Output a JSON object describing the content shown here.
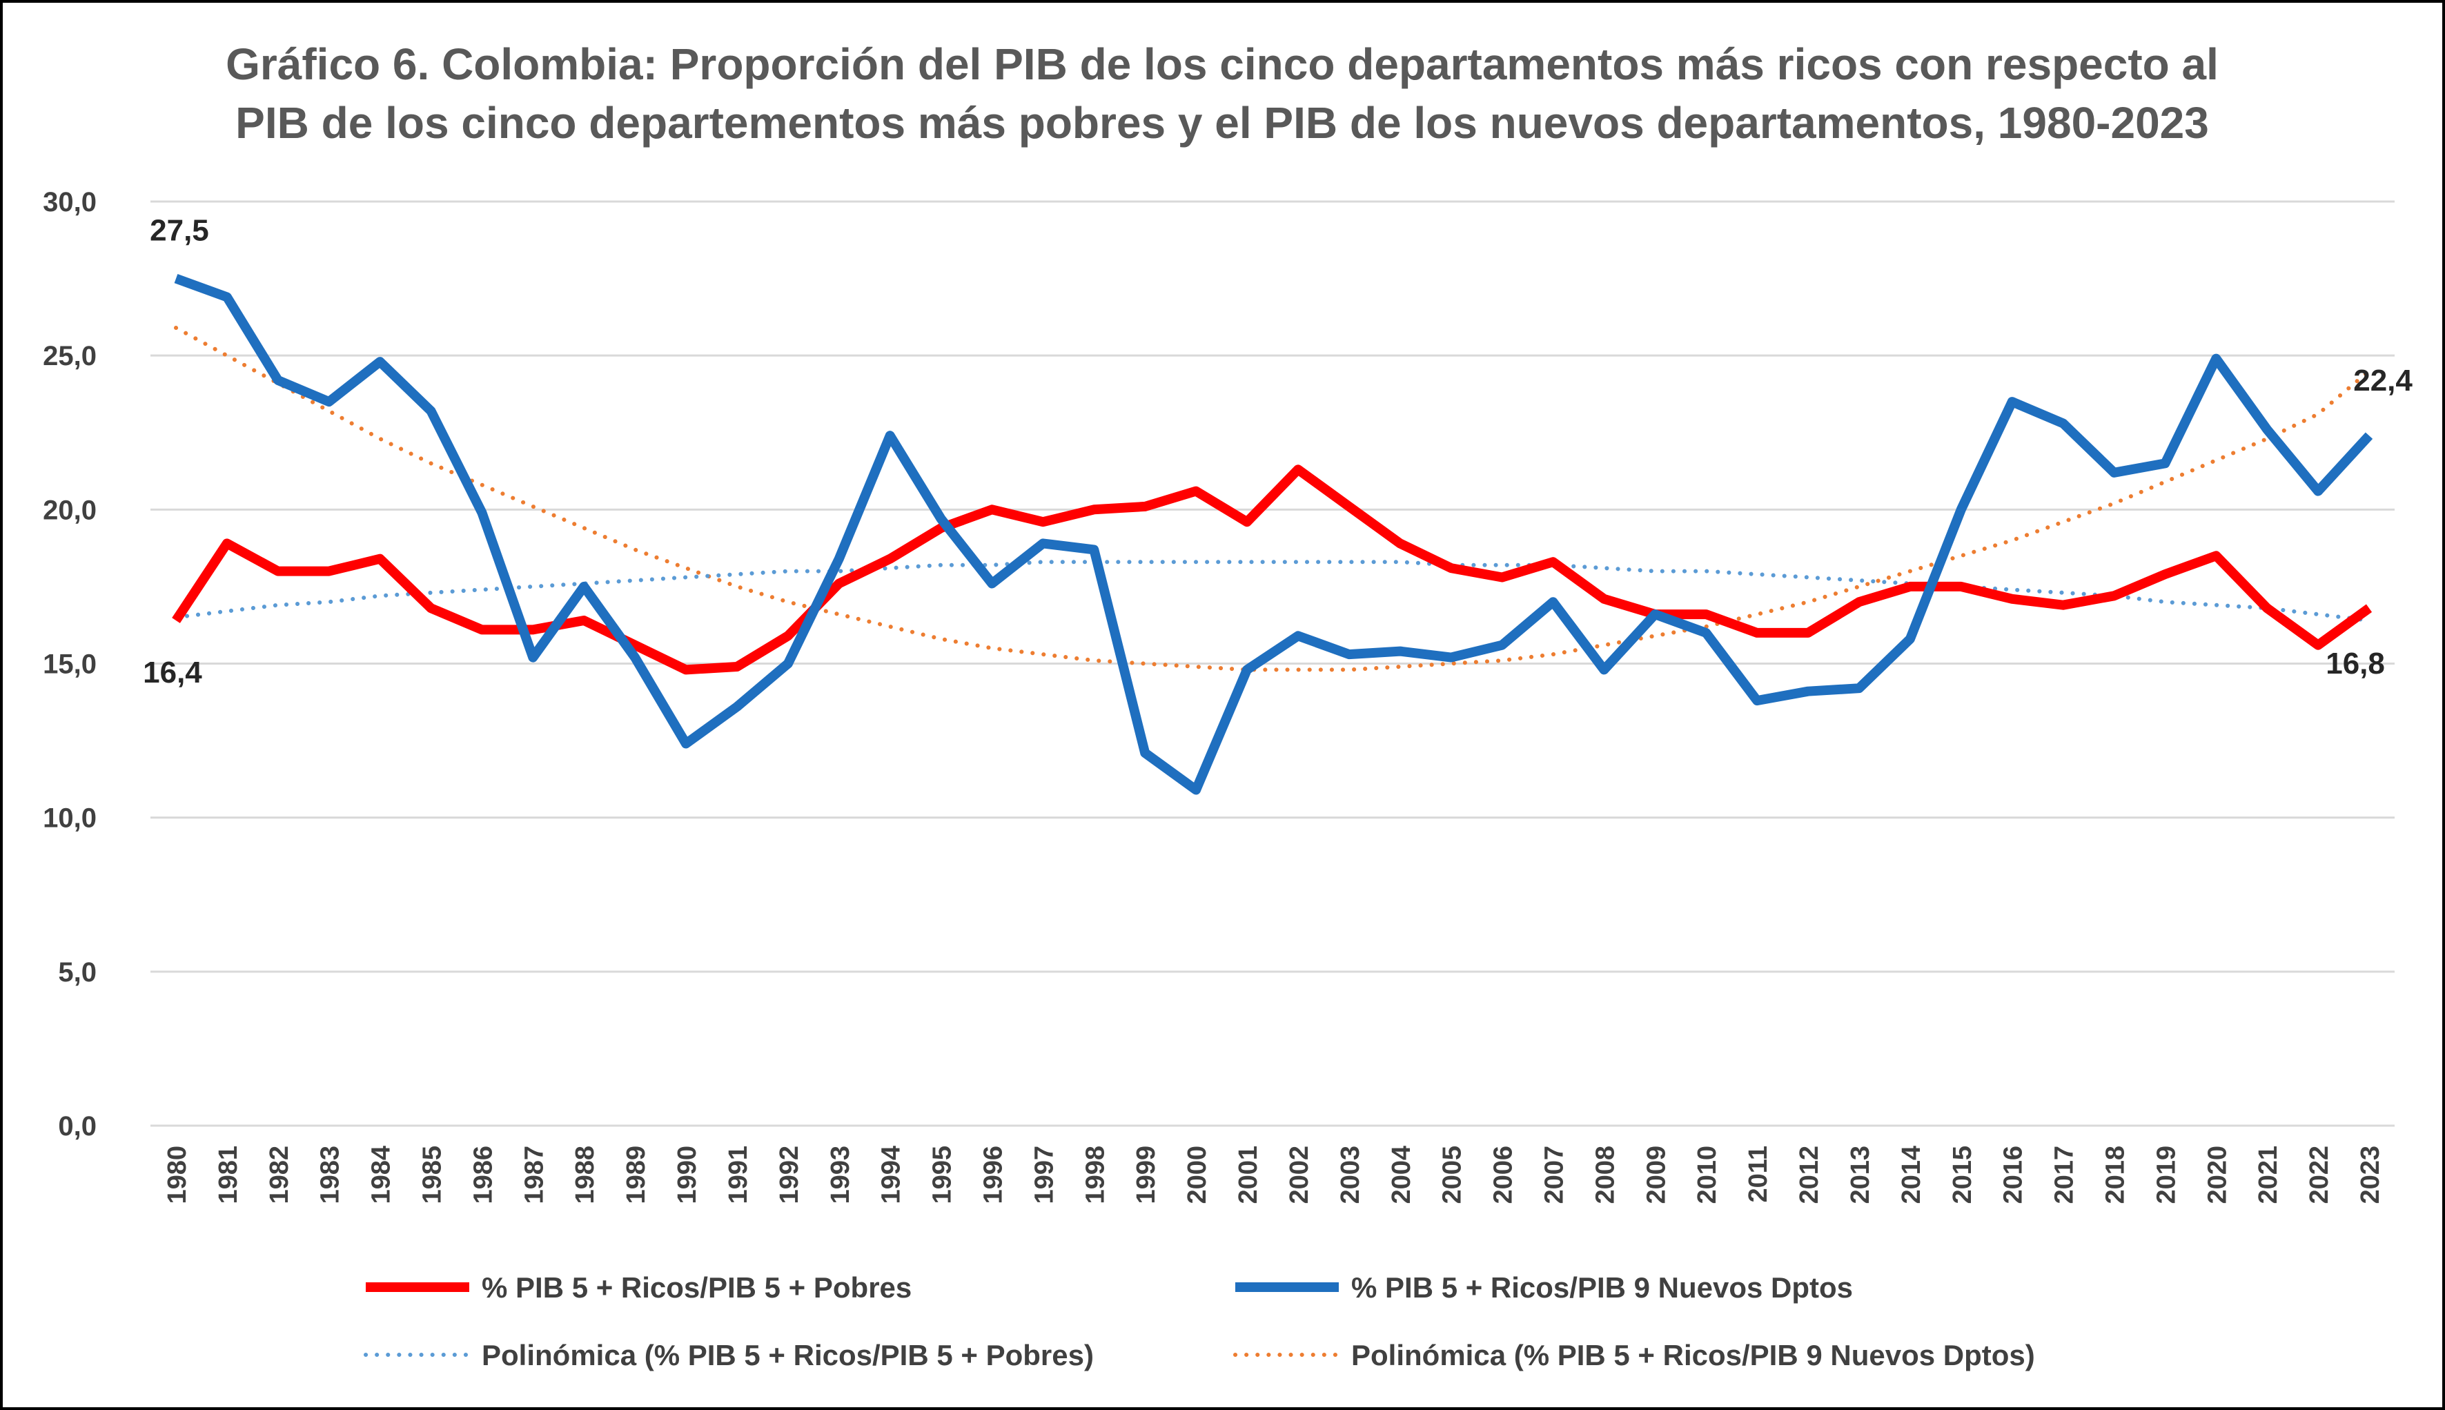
{
  "chart_data": {
    "type": "line",
    "title": "Gráfico 6. Colombia: Proporción del PIB de los cinco departamentos más ricos con respecto al PIB de los cinco departementos más pobres y el PIB de los nuevos departamentos, 1980-2023",
    "title_lines": [
      "Gráfico 6. Colombia: Proporción del PIB de los cinco departamentos más ricos con respecto al",
      "PIB de los cinco departementos más pobres y el PIB de los nuevos departamentos, 1980-2023"
    ],
    "xlabel": "",
    "ylabel": "",
    "ylim": [
      0,
      30
    ],
    "yticks": [
      "0,0",
      "5,0",
      "10,0",
      "15,0",
      "20,0",
      "25,0",
      "30,0"
    ],
    "ytick_values": [
      0,
      5,
      10,
      15,
      20,
      25,
      30
    ],
    "grid": true,
    "legend_position": "bottom",
    "categories": [
      "1980",
      "1981",
      "1982",
      "1983",
      "1984",
      "1985",
      "1986",
      "1987",
      "1988",
      "1989",
      "1990",
      "1991",
      "1992",
      "1993",
      "1994",
      "1995",
      "1996",
      "1997",
      "1998",
      "1999",
      "2000",
      "2001",
      "2002",
      "2003",
      "2004",
      "2005",
      "2006",
      "2007",
      "2008",
      "2009",
      "2010",
      "2011",
      "2012",
      "2013",
      "2014",
      "2015",
      "2016",
      "2017",
      "2018",
      "2019",
      "2020",
      "2021",
      "2022",
      "2023"
    ],
    "series": [
      {
        "name": "% PIB 5 + Ricos/PIB 5 + Pobres",
        "color": "#FF0000",
        "style": "solid",
        "values": [
          16.4,
          18.9,
          18.0,
          18.0,
          18.4,
          16.8,
          16.1,
          16.1,
          16.4,
          15.6,
          14.8,
          14.9,
          15.9,
          17.6,
          18.4,
          19.4,
          20.0,
          19.6,
          20.0,
          20.1,
          20.6,
          19.6,
          21.3,
          20.1,
          18.9,
          18.1,
          17.8,
          18.3,
          17.1,
          16.6,
          16.6,
          16.0,
          16.0,
          17.0,
          17.5,
          17.5,
          17.1,
          16.9,
          17.2,
          17.9,
          18.5,
          16.8,
          15.6,
          16.8
        ]
      },
      {
        "name": "% PIB 5 + Ricos/PIB 9 Nuevos Dptos",
        "color": "#1F6FBF",
        "style": "solid",
        "values": [
          27.5,
          26.9,
          24.2,
          23.5,
          24.8,
          23.2,
          19.9,
          15.2,
          17.5,
          15.2,
          12.4,
          13.6,
          15.0,
          18.4,
          22.4,
          19.7,
          17.6,
          18.9,
          18.7,
          12.1,
          10.9,
          14.8,
          15.9,
          15.3,
          15.4,
          15.2,
          15.6,
          17.0,
          14.8,
          16.6,
          16.0,
          13.8,
          14.1,
          14.2,
          15.8,
          20.0,
          23.5,
          22.8,
          21.2,
          21.5,
          24.9,
          22.6,
          20.6,
          22.4
        ]
      },
      {
        "name": "Polinómica (% PIB 5 + Ricos/PIB 5 + Pobres)",
        "color": "#5B9BD5",
        "style": "dotted",
        "values": [
          16.5,
          16.7,
          16.9,
          17.0,
          17.2,
          17.3,
          17.4,
          17.5,
          17.6,
          17.7,
          17.8,
          17.9,
          18.0,
          18.0,
          18.1,
          18.2,
          18.2,
          18.3,
          18.3,
          18.3,
          18.3,
          18.3,
          18.3,
          18.3,
          18.3,
          18.2,
          18.2,
          18.2,
          18.1,
          18.0,
          18.0,
          17.9,
          17.8,
          17.7,
          17.6,
          17.5,
          17.4,
          17.3,
          17.2,
          17.0,
          16.9,
          16.8,
          16.6,
          16.4
        ]
      },
      {
        "name": "Polinómica (% PIB 5 + Ricos/PIB 9 Nuevos Dptos)",
        "color": "#ED7D31",
        "style": "dotted",
        "values": [
          25.9,
          25.0,
          24.1,
          23.2,
          22.3,
          21.5,
          20.8,
          20.1,
          19.4,
          18.7,
          18.1,
          17.5,
          17.0,
          16.6,
          16.2,
          15.8,
          15.5,
          15.3,
          15.1,
          15.0,
          14.9,
          14.8,
          14.8,
          14.8,
          14.9,
          15.0,
          15.1,
          15.3,
          15.6,
          15.9,
          16.2,
          16.6,
          17.0,
          17.5,
          18.0,
          18.5,
          19.0,
          19.6,
          20.2,
          20.9,
          21.6,
          22.3,
          23.1,
          24.5
        ]
      }
    ],
    "data_labels": [
      {
        "series": 1,
        "index": 0,
        "text": "27,5",
        "anchor": "above"
      },
      {
        "series": 0,
        "index": 0,
        "text": "16,4",
        "anchor": "below"
      },
      {
        "series": 1,
        "index": 43,
        "text": "22,4",
        "anchor": "above-left"
      },
      {
        "series": 0,
        "index": 43,
        "text": "16,8",
        "anchor": "below-left"
      }
    ]
  }
}
